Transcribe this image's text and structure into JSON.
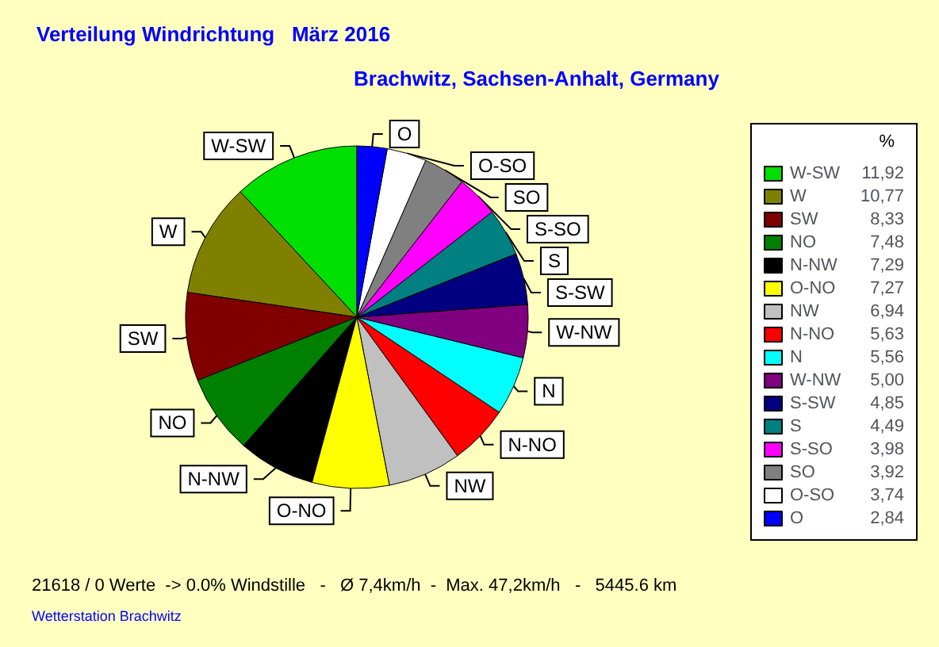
{
  "chart_data": {
    "type": "pie",
    "title": "Verteilung Windrichtung   März 2016",
    "subtitle": "Brachwitz, Sachsen-Anhalt, Germany",
    "legend_title": "%",
    "legend": "right",
    "categories": [
      "W-SW",
      "W",
      "SW",
      "NO",
      "N-NW",
      "O-NO",
      "NW",
      "N-NO",
      "N",
      "W-NW",
      "S-SW",
      "S",
      "S-SO",
      "SO",
      "O-SO",
      "O"
    ],
    "values": [
      11.92,
      10.77,
      8.33,
      7.48,
      7.29,
      7.27,
      6.94,
      5.63,
      5.56,
      5.0,
      4.85,
      4.49,
      3.98,
      3.92,
      3.74,
      2.84
    ],
    "value_labels": [
      "11,92",
      "10,77",
      "8,33",
      "7,48",
      "7,29",
      "7,27",
      "6,94",
      "5,63",
      "5,56",
      "5,00",
      "4,85",
      "4,49",
      "3,98",
      "3,92",
      "3,74",
      "2,84"
    ],
    "colors": [
      "#00e000",
      "#808000",
      "#800000",
      "#008000",
      "#000000",
      "#ffff00",
      "#c0c0c0",
      "#ff0000",
      "#00ffff",
      "#800080",
      "#000080",
      "#008080",
      "#ff00ff",
      "#808080",
      "#ffffff",
      "#0000ff"
    ],
    "annotations": [
      "21618 / 0 Werte  -> 0.0% Windstille   -   Ø 7,4km/h  -  Max. 47,2km/h   -   5445.6 km",
      "Wetterstation Brachwitz"
    ]
  }
}
